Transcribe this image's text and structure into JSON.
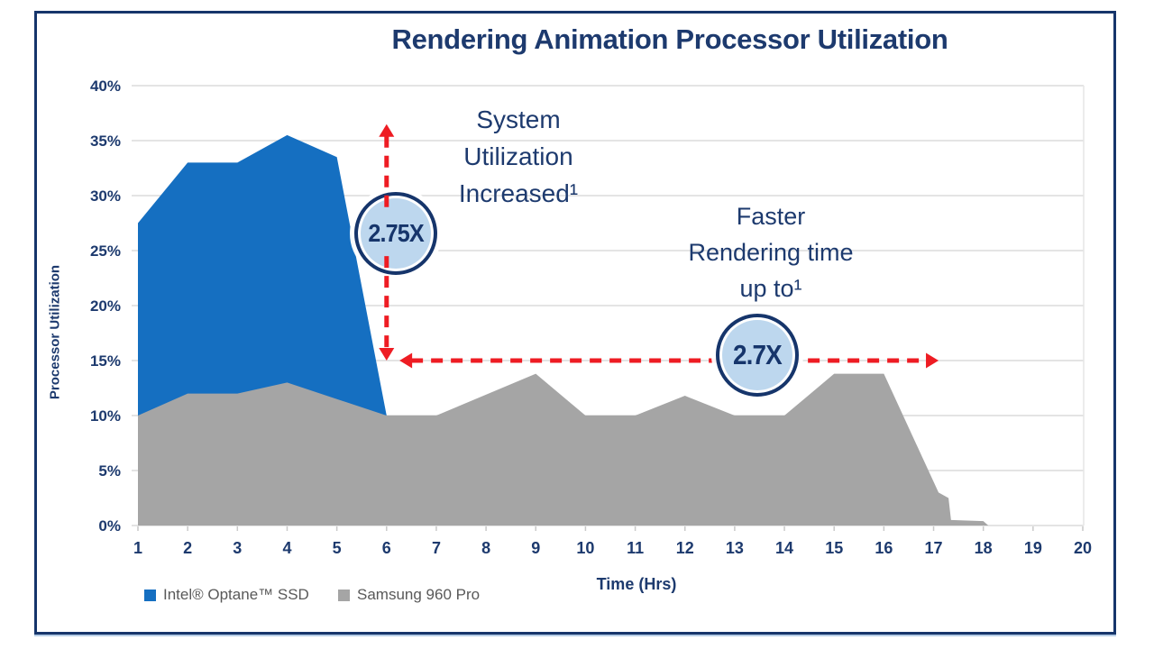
{
  "title": "Rendering Animation Processor Utilization",
  "colors": {
    "navy_text": "#1d3a6e",
    "intel_blue": "#156fc1",
    "samsung_gray": "#a5a5a5",
    "arrow_red": "#ee1c23",
    "badge_fill": "#bdd7ee",
    "badge_ring": "#16356b",
    "gridline": "#dcdcdc",
    "axis_line": "#c9c9c9",
    "legend_text": "#595959",
    "frame_border": "#16356b"
  },
  "chart_data": {
    "type": "area",
    "title": "Rendering Animation Processor Utilization",
    "xlabel": "Time (Hrs)",
    "ylabel": "Processor Utilization",
    "xlim": [
      1,
      20
    ],
    "ylim_pct": [
      0,
      40
    ],
    "x_ticks": [
      1,
      2,
      3,
      4,
      5,
      6,
      7,
      8,
      9,
      10,
      11,
      12,
      13,
      14,
      15,
      16,
      17,
      18,
      19,
      20
    ],
    "y_ticks_pct": [
      0,
      5,
      10,
      15,
      20,
      25,
      30,
      35,
      40
    ],
    "grid": "horizontal",
    "legend_position": "bottom-left",
    "series": [
      {
        "name": "Intel® Optane™ SSD",
        "color": "#156fc1",
        "points": [
          [
            1,
            27.5
          ],
          [
            2,
            33
          ],
          [
            3,
            33
          ],
          [
            4,
            35.5
          ],
          [
            5,
            33.5
          ],
          [
            6,
            10
          ],
          [
            6.1,
            0
          ]
        ]
      },
      {
        "name": "Samsung 960 Pro",
        "color": "#a5a5a5",
        "points": [
          [
            1,
            10
          ],
          [
            2,
            12
          ],
          [
            3,
            12
          ],
          [
            4,
            13
          ],
          [
            5,
            11.5
          ],
          [
            6,
            10
          ],
          [
            7,
            10
          ],
          [
            9,
            13.8
          ],
          [
            10,
            10
          ],
          [
            11,
            10
          ],
          [
            12,
            11.8
          ],
          [
            13,
            10
          ],
          [
            14,
            10
          ],
          [
            15,
            13.8
          ],
          [
            16,
            13.8
          ],
          [
            17.1,
            3
          ],
          [
            17.3,
            2.5
          ],
          [
            17.35,
            0.5
          ],
          [
            18,
            0.4
          ],
          [
            18.1,
            0
          ],
          [
            20,
            0
          ]
        ]
      }
    ],
    "annotations": {
      "system": {
        "lines": [
          "System",
          "Utilization",
          "Increased¹"
        ],
        "badge_label": "2.75X"
      },
      "faster": {
        "lines": [
          "Faster",
          "Rendering time",
          "up to¹"
        ],
        "badge_label": "2.7X"
      },
      "vertical_arrow": {
        "x_time": 6,
        "from_pct": 15,
        "to_pct": 36.5,
        "gap_top_pct": 28.5,
        "gap_bottom_pct": 24.5,
        "color": "#ee1c23"
      },
      "horizontal_arrow": {
        "y_pct": 15,
        "from_time": 6.26,
        "to_time": 17.1,
        "color": "#ee1c23"
      }
    }
  },
  "legend": {
    "items": [
      {
        "label": "Intel® Optane™ SSD",
        "color": "#156fc1"
      },
      {
        "label": "Samsung 960 Pro",
        "color": "#a5a5a5"
      }
    ]
  }
}
